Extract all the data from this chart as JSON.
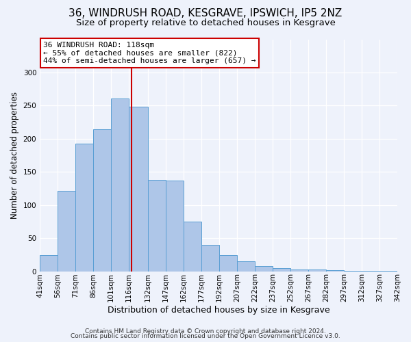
{
  "title": "36, WINDRUSH ROAD, KESGRAVE, IPSWICH, IP5 2NZ",
  "subtitle": "Size of property relative to detached houses in Kesgrave",
  "xlabel": "Distribution of detached houses by size in Kesgrave",
  "ylabel": "Number of detached properties",
  "bar_values": [
    24,
    121,
    193,
    214,
    261,
    248,
    138,
    137,
    75,
    40,
    24,
    15,
    8,
    5,
    3,
    3,
    2,
    1,
    1,
    1
  ],
  "bin_edges": [
    41,
    56,
    71,
    86,
    101,
    116,
    132,
    147,
    162,
    177,
    192,
    207,
    222,
    237,
    252,
    267,
    282,
    297,
    312,
    327,
    342
  ],
  "bin_labels": [
    "41sqm",
    "56sqm",
    "71sqm",
    "86sqm",
    "101sqm",
    "116sqm",
    "132sqm",
    "147sqm",
    "162sqm",
    "177sqm",
    "192sqm",
    "207sqm",
    "222sqm",
    "237sqm",
    "252sqm",
    "267sqm",
    "282sqm",
    "297sqm",
    "312sqm",
    "327sqm",
    "342sqm"
  ],
  "bar_color": "#aec6e8",
  "bar_edge_color": "#5a9fd4",
  "property_line_x": 118,
  "property_line_color": "#cc0000",
  "annotation_text": "36 WINDRUSH ROAD: 118sqm\n← 55% of detached houses are smaller (822)\n44% of semi-detached houses are larger (657) →",
  "annotation_box_color": "#ffffff",
  "annotation_box_edge_color": "#cc0000",
  "ylim": [
    0,
    350
  ],
  "yticks": [
    0,
    50,
    100,
    150,
    200,
    250,
    300,
    350
  ],
  "footer_line1": "Contains HM Land Registry data © Crown copyright and database right 2024.",
  "footer_line2": "Contains public sector information licensed under the Open Government Licence v3.0.",
  "bg_color": "#eef2fb",
  "plot_bg_color": "#eef2fb",
  "title_fontsize": 11,
  "subtitle_fontsize": 9.5,
  "xlabel_fontsize": 9,
  "ylabel_fontsize": 8.5,
  "footer_fontsize": 6.5,
  "tick_fontsize": 7.5
}
